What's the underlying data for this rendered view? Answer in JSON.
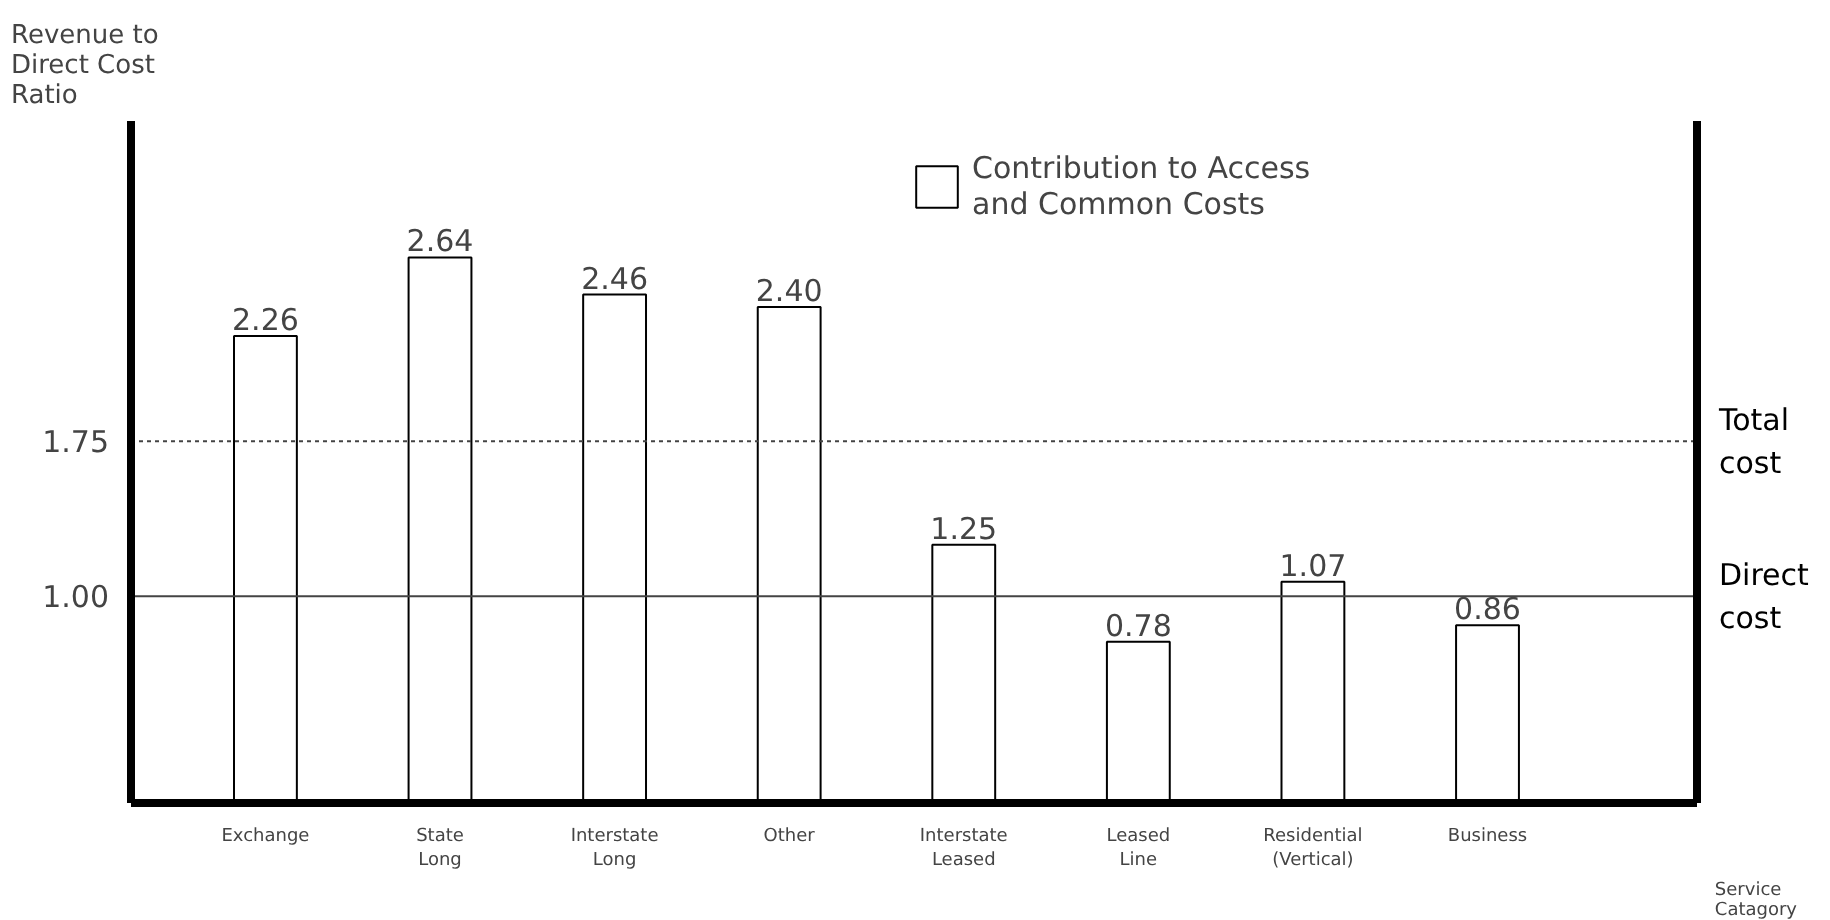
{
  "chart_data": {
    "type": "bar",
    "ylabel": "Revenue to Direct Cost Ratio",
    "xlabel": "Service Catagory",
    "categories": [
      "Exchange",
      "State Long",
      "Interstate Long",
      "Other",
      "Interstate Leased",
      "Leased Line",
      "Residential (Vertical)",
      "Business"
    ],
    "series": [
      {
        "name": "Contribution to Access and Common Costs",
        "color": "#ffffff",
        "values": [
          2.26,
          2.64,
          2.46,
          2.4,
          1.25,
          0.78,
          1.07,
          0.86
        ]
      }
    ],
    "value_labels": [
      "2.26",
      "2.64",
      "2.46",
      "2.40",
      "1.25",
      "0.78",
      "1.07",
      "0.86"
    ],
    "ylim": [
      0,
      3.3
    ],
    "yticks": [
      {
        "value": 1,
        "label": "1.00"
      },
      {
        "value": 1.75,
        "label": "1.75"
      }
    ],
    "ref_lines": [
      {
        "axis": "y",
        "value": 1.75,
        "label": "Total cost",
        "line_style": "dotted"
      },
      {
        "axis": "y",
        "value": 1.0,
        "label": "Direct cost",
        "line_style": "solid"
      }
    ],
    "legend": "top",
    "grid": false
  }
}
